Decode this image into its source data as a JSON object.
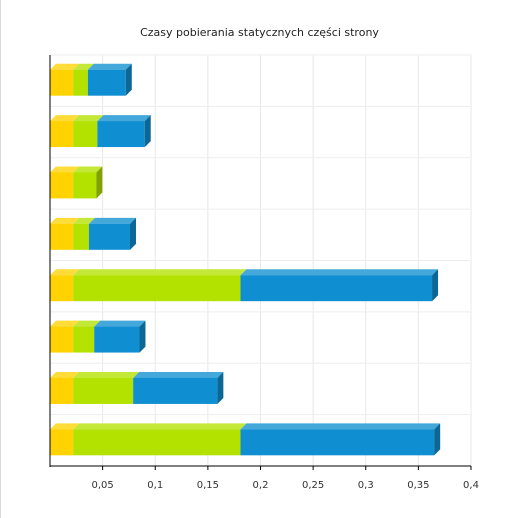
{
  "chart_data": {
    "type": "bar",
    "orientation": "horizontal",
    "stacked": true,
    "three_d": true,
    "title": "Czasy pobierania statycznych części strony",
    "xlabel": "",
    "ylabel": "",
    "xlim": [
      0,
      0.4
    ],
    "x_ticks": [
      0.05,
      0.1,
      0.15,
      0.2,
      0.25,
      0.3,
      0.35,
      0.4
    ],
    "x_tick_labels": [
      "0,05",
      "0,1",
      "0,15",
      "0,2",
      "0,25",
      "0,3",
      "0,35",
      "0,4"
    ],
    "grid": true,
    "legend": "none",
    "series_colors": [
      "#ffd200",
      "#b3e200",
      "#0f8fd1"
    ],
    "categories": [
      "",
      "",
      "",
      "",
      "",
      "",
      "",
      ""
    ],
    "series": [
      {
        "values": [
          0.022,
          0.022,
          0.022,
          0.022,
          0.022,
          0.022,
          0.022,
          0.022
        ]
      },
      {
        "values": [
          0.014,
          0.023,
          0.022,
          0.015,
          0.159,
          0.02,
          0.057,
          0.159
        ]
      },
      {
        "values": [
          0.036,
          0.045,
          0.0,
          0.039,
          0.182,
          0.043,
          0.08,
          0.184
        ]
      }
    ]
  }
}
